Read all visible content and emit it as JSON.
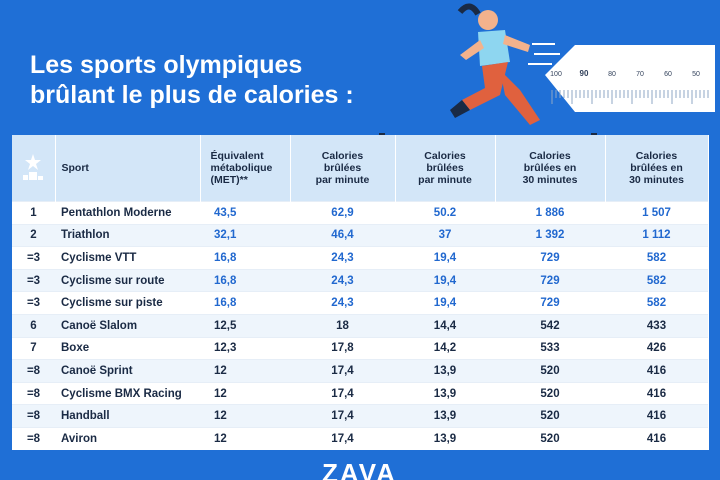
{
  "header": {
    "title_lines": [
      "Les sports olympiques",
      "brûlant le plus de calories :"
    ]
  },
  "ruler": {
    "labels": [
      "100",
      "90",
      "80",
      "70",
      "60",
      "50"
    ]
  },
  "table": {
    "columns": [
      [
        "Sport"
      ],
      [
        "Équivalent",
        "métabolique",
        "(MET)**"
      ],
      [
        "Calories",
        "brûlées",
        "par minute"
      ],
      [
        "Calories",
        "brûlées",
        "par minute"
      ],
      [
        "Calories",
        "brûlées en",
        "30 minutes"
      ],
      [
        "Calories",
        "brûlées en",
        "30 minutes"
      ]
    ],
    "rows": [
      [
        "1",
        "Pentathlon Moderne",
        "43,5",
        "62,9",
        "50.2",
        "1 886",
        "1 507"
      ],
      [
        "2",
        "Triathlon",
        "32,1",
        "46,4",
        "37",
        "1 392",
        "1 112"
      ],
      [
        "=3",
        "Cyclisme VTT",
        "16,8",
        "24,3",
        "19,4",
        "729",
        "582"
      ],
      [
        "=3",
        "Cyclisme sur route",
        "16,8",
        "24,3",
        "19,4",
        "729",
        "582"
      ],
      [
        "=3",
        "Cyclisme sur piste",
        "16,8",
        "24,3",
        "19,4",
        "729",
        "582"
      ],
      [
        "6",
        "Canoë Slalom",
        "12,5",
        "18",
        "14,4",
        "542",
        "433"
      ],
      [
        "7",
        "Boxe",
        "12,3",
        "17,8",
        "14,2",
        "533",
        "426"
      ],
      [
        "=8",
        "Canoë Sprint",
        "12",
        "17,4",
        "13,9",
        "520",
        "416"
      ],
      [
        "=8",
        "Cyclisme BMX Racing",
        "12",
        "17,4",
        "13,9",
        "520",
        "416"
      ],
      [
        "=8",
        "Handball",
        "12",
        "17,4",
        "13,9",
        "520",
        "416"
      ],
      [
        "=8",
        "Aviron",
        "12",
        "17,4",
        "13,9",
        "520",
        "416"
      ]
    ]
  },
  "footer": {
    "logo": "ZAVA"
  }
}
